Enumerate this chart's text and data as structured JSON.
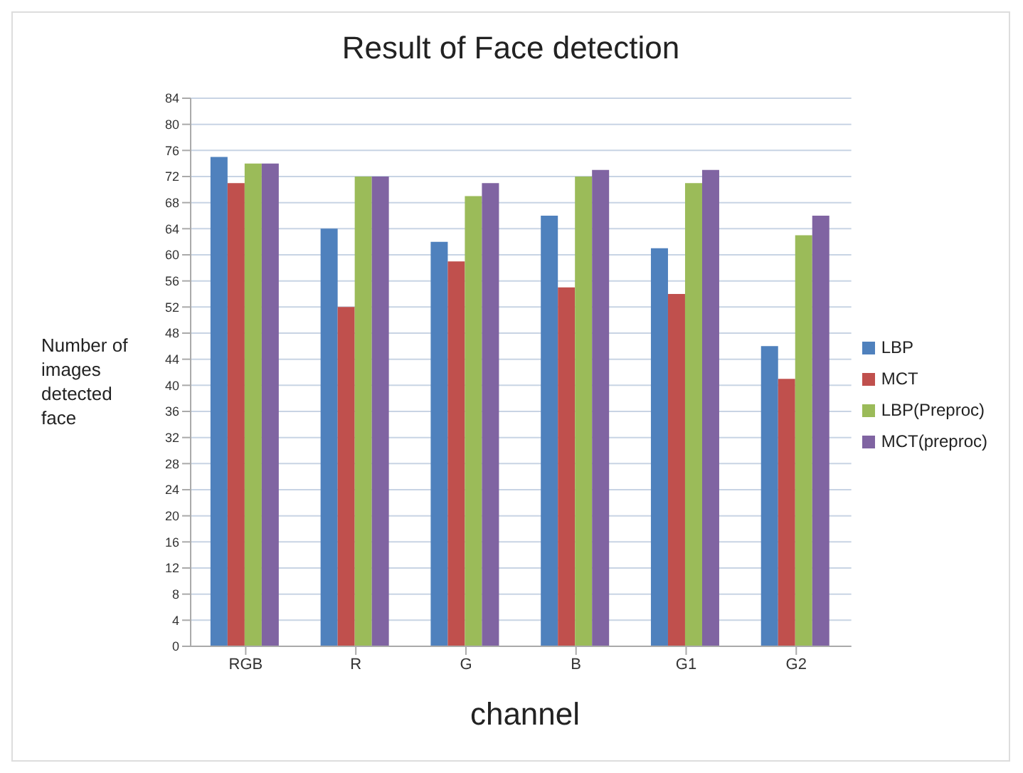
{
  "chart_data": {
    "type": "bar",
    "title": "Result of Face detection",
    "xlabel": "channel",
    "ylabel": "Number of images detected face",
    "categories": [
      "RGB",
      "R",
      "G",
      "B",
      "G1",
      "G2"
    ],
    "series": [
      {
        "name": "LBP",
        "color": "#4f81bd",
        "values": [
          75,
          64,
          62,
          66,
          61,
          46
        ]
      },
      {
        "name": "MCT",
        "color": "#c0504d",
        "values": [
          71,
          52,
          59,
          55,
          54,
          41
        ]
      },
      {
        "name": "LBP(Preproc)",
        "color": "#9bbb59",
        "values": [
          74,
          72,
          69,
          72,
          71,
          63
        ]
      },
      {
        "name": "MCT(preproc)",
        "color": "#8064a2",
        "values": [
          74,
          72,
          71,
          73,
          73,
          66
        ]
      }
    ],
    "ylim": [
      0,
      84
    ],
    "yticks": [
      0,
      4,
      8,
      12,
      16,
      20,
      24,
      28,
      32,
      36,
      40,
      44,
      48,
      52,
      56,
      60,
      64,
      68,
      72,
      76,
      80,
      84
    ],
    "grid": "y",
    "legend": "right"
  }
}
